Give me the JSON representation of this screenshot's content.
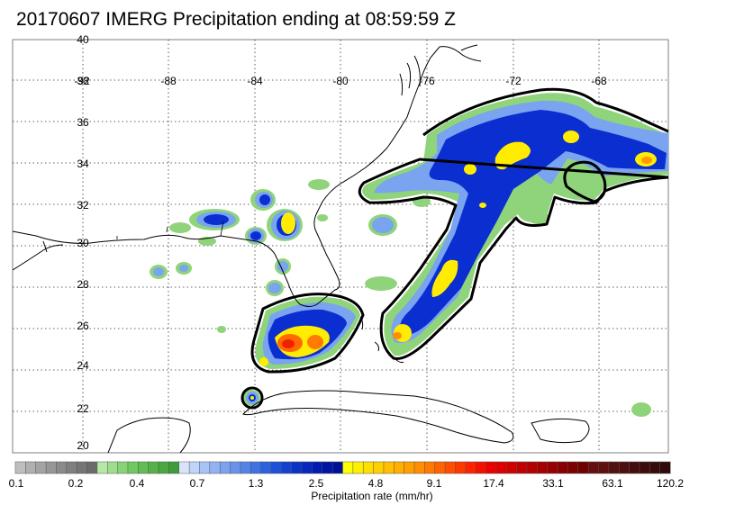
{
  "title": "20170607 IMERG Precipitation ending at 08:59:59 Z",
  "map": {
    "lon_labels": [
      "-92",
      "-88",
      "-84",
      "-80",
      "-76",
      "-72",
      "-68"
    ],
    "lat_labels": [
      "40",
      "36",
      "34",
      "32",
      "30",
      "28",
      "26",
      "24",
      "22",
      "20"
    ],
    "lat_label_overlap": "38",
    "grid": "dotted"
  },
  "colorbar": {
    "label": "Precipitation rate (mm/hr)",
    "tick_labels": [
      "0.1",
      "0.2",
      "0.4",
      "0.7",
      "1.3",
      "2.5",
      "4.8",
      "9.1",
      "17.4",
      "33.1",
      "63.1",
      "120.2"
    ],
    "colors": [
      "#bfbfbf",
      "#b0b0b0",
      "#a3a3a3",
      "#969696",
      "#8a8a8a",
      "#7f7f7f",
      "#757575",
      "#6b6b6b",
      "#b6e8a8",
      "#9ede8c",
      "#86d474",
      "#72c962",
      "#62bd54",
      "#55b24a",
      "#4aa742",
      "#3f9c3a",
      "#d8e4fb",
      "#c0d4fa",
      "#a8c3f7",
      "#92b2f3",
      "#7da2ef",
      "#6892eb",
      "#5483e7",
      "#3f73e3",
      "#2a62df",
      "#1d52d8",
      "#1442d0",
      "#0b33c8",
      "#0626bd",
      "#021cb0",
      "#0015a3",
      "#001096",
      "#ffff00",
      "#ffef00",
      "#ffdf00",
      "#ffcf00",
      "#ffbf00",
      "#ffaf00",
      "#ff9f00",
      "#ff8f00",
      "#ff7a00",
      "#ff6400",
      "#ff4e00",
      "#ff3800",
      "#ff2200",
      "#f60f00",
      "#ea0000",
      "#dd0000",
      "#cf0000",
      "#c10000",
      "#b30000",
      "#a50000",
      "#970000",
      "#8a0000",
      "#7d0000",
      "#700000",
      "#651010",
      "#5c1010",
      "#540f0f",
      "#4c0e0e",
      "#450d0d",
      "#3e0c0c",
      "#370b0b",
      "#300a0a"
    ]
  }
}
